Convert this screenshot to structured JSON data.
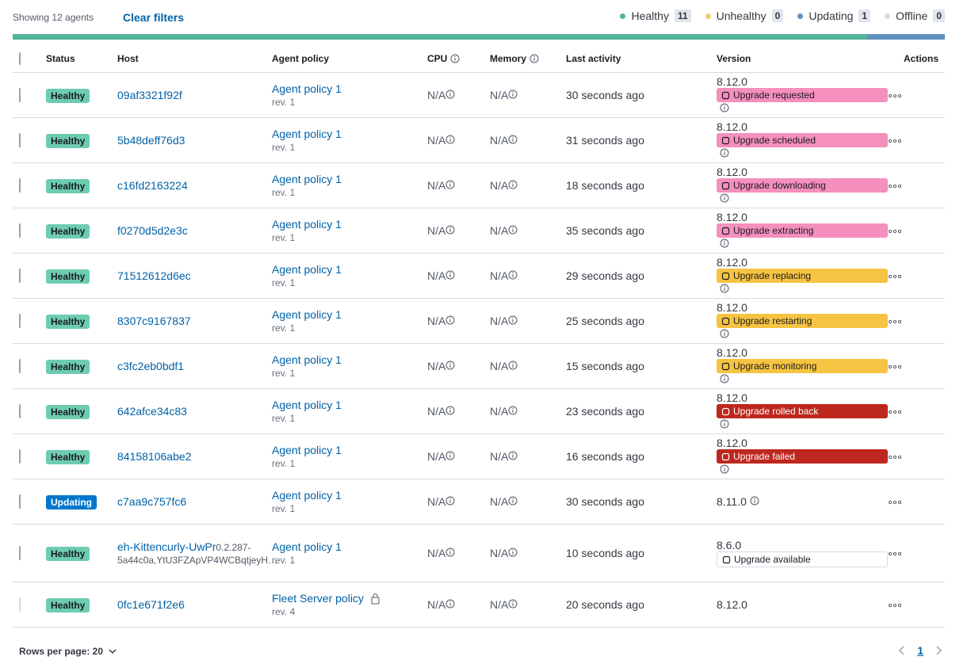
{
  "header": {
    "showing": "Showing 12 agents",
    "clear_filters": "Clear filters",
    "status_counts": [
      {
        "label": "Healthy",
        "count": 11,
        "color": "#54b399"
      },
      {
        "label": "Unhealthy",
        "count": 0,
        "color": "#e7d27c"
      },
      {
        "label": "Updating",
        "count": 1,
        "color": "#6092c0"
      },
      {
        "label": "Offline",
        "count": 0,
        "color": "#d3dae6"
      }
    ]
  },
  "table": {
    "columns": [
      "Status",
      "Host",
      "Agent policy",
      "CPU",
      "Memory",
      "Last activity",
      "Version",
      "Actions"
    ],
    "rows": [
      {
        "status": "Healthy",
        "status_color": "#6dccb1",
        "host": "09af3321f92f",
        "policy": "Agent policy 1",
        "policy_rev": "rev. 1",
        "cpu": "N/A",
        "memory": "N/A",
        "last_activity": "30 seconds ago",
        "version": "8.12.0",
        "upgrade": {
          "label": "Upgrade requested",
          "color": "#f58fbd"
        },
        "version_info": true,
        "selectable": true
      },
      {
        "status": "Healthy",
        "status_color": "#6dccb1",
        "host": "5b48deff76d3",
        "policy": "Agent policy 1",
        "policy_rev": "rev. 1",
        "cpu": "N/A",
        "memory": "N/A",
        "last_activity": "31 seconds ago",
        "version": "8.12.0",
        "upgrade": {
          "label": "Upgrade scheduled",
          "color": "#f58fbd"
        },
        "version_info": true,
        "selectable": true
      },
      {
        "status": "Healthy",
        "status_color": "#6dccb1",
        "host": "c16fd2163224",
        "policy": "Agent policy 1",
        "policy_rev": "rev. 1",
        "cpu": "N/A",
        "memory": "N/A",
        "last_activity": "18 seconds ago",
        "version": "8.12.0",
        "upgrade": {
          "label": "Upgrade downloading",
          "color": "#f58fbd"
        },
        "version_info": true,
        "selectable": true
      },
      {
        "status": "Healthy",
        "status_color": "#6dccb1",
        "host": "f0270d5d2e3c",
        "policy": "Agent policy 1",
        "policy_rev": "rev. 1",
        "cpu": "N/A",
        "memory": "N/A",
        "last_activity": "35 seconds ago",
        "version": "8.12.0",
        "upgrade": {
          "label": "Upgrade extracting",
          "color": "#f58fbd"
        },
        "version_info": true,
        "selectable": true
      },
      {
        "status": "Healthy",
        "status_color": "#6dccb1",
        "host": "71512612d6ec",
        "policy": "Agent policy 1",
        "policy_rev": "rev. 1",
        "cpu": "N/A",
        "memory": "N/A",
        "last_activity": "29 seconds ago",
        "version": "8.12.0",
        "upgrade": {
          "label": "Upgrade replacing",
          "color": "#f6c342"
        },
        "version_info": true,
        "selectable": true
      },
      {
        "status": "Healthy",
        "status_color": "#6dccb1",
        "host": "8307c9167837",
        "policy": "Agent policy 1",
        "policy_rev": "rev. 1",
        "cpu": "N/A",
        "memory": "N/A",
        "last_activity": "25 seconds ago",
        "version": "8.12.0",
        "upgrade": {
          "label": "Upgrade restarting",
          "color": "#f6c342"
        },
        "version_info": true,
        "selectable": true
      },
      {
        "status": "Healthy",
        "status_color": "#6dccb1",
        "host": "c3fc2eb0bdf1",
        "policy": "Agent policy 1",
        "policy_rev": "rev. 1",
        "cpu": "N/A",
        "memory": "N/A",
        "last_activity": "15 seconds ago",
        "version": "8.12.0",
        "upgrade": {
          "label": "Upgrade monitoring",
          "color": "#f6c342"
        },
        "version_info": true,
        "selectable": true
      },
      {
        "status": "Healthy",
        "status_color": "#6dccb1",
        "host": "642afce34c83",
        "policy": "Agent policy 1",
        "policy_rev": "rev. 1",
        "cpu": "N/A",
        "memory": "N/A",
        "last_activity": "23 seconds ago",
        "version": "8.12.0",
        "upgrade": {
          "label": "Upgrade rolled back",
          "color": "#bd271e"
        },
        "version_info": true,
        "selectable": true
      },
      {
        "status": "Healthy",
        "status_color": "#6dccb1",
        "host": "84158106abe2",
        "policy": "Agent policy 1",
        "policy_rev": "rev. 1",
        "cpu": "N/A",
        "memory": "N/A",
        "last_activity": "16 seconds ago",
        "version": "8.12.0",
        "upgrade": {
          "label": "Upgrade failed",
          "color": "#bd271e"
        },
        "version_info": true,
        "selectable": true
      },
      {
        "status": "Updating",
        "status_color": "#0077cc",
        "host": "c7aa9c757fc6",
        "policy": "Agent policy 1",
        "policy_rev": "rev. 1",
        "cpu": "N/A",
        "memory": "N/A",
        "last_activity": "30 seconds ago",
        "version": "8.11.0",
        "version_info": true,
        "selectable": true
      },
      {
        "status": "Healthy",
        "status_color": "#6dccb1",
        "host": "eh-Kittencurly-UwPr",
        "host_details": [
          "0.2.287-5a44c0a,",
          "YtU3FZApVP4WCBqtjeyH…"
        ],
        "policy": "Agent policy 1",
        "policy_rev": "rev. 1",
        "cpu": "N/A",
        "memory": "N/A",
        "last_activity": "10 seconds ago",
        "version": "8.6.0",
        "upgrade": {
          "label": "Upgrade available",
          "color": "#ffffff"
        },
        "version_info": false,
        "selectable": true
      },
      {
        "status": "Healthy",
        "status_color": "#6dccb1",
        "host": "0fc1e671f2e6",
        "policy": "Fleet Server policy",
        "policy_locked": true,
        "policy_rev": "rev. 4",
        "cpu": "N/A",
        "memory": "N/A",
        "last_activity": "20 seconds ago",
        "version": "8.12.0",
        "version_info": false,
        "selectable": false
      }
    ]
  },
  "footer": {
    "rows_per_page": "Rows per page: 20",
    "page": "1"
  }
}
